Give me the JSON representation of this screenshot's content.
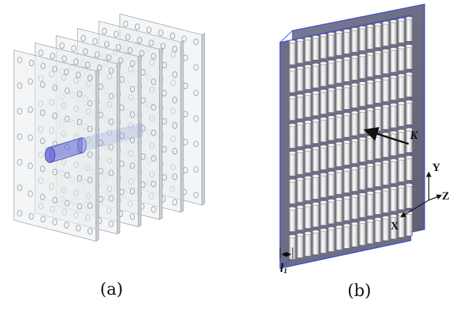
{
  "panels": [
    {
      "caption": "(a)"
    },
    {
      "caption": "(b)"
    }
  ],
  "labels": {
    "k": "K",
    "y": "Y",
    "z": "Z",
    "x": "X",
    "l1_main": "l",
    "l1_sub": "1"
  },
  "colors": {
    "plate_fill": "#e9ecef",
    "plate_edge": "#9aa0a6",
    "cylinder_a": "#6f73d6",
    "plate_b": "#6d6d86",
    "plate_b_edge": "#3d4bd8",
    "cylinder_b": "#e6e6e6"
  }
}
